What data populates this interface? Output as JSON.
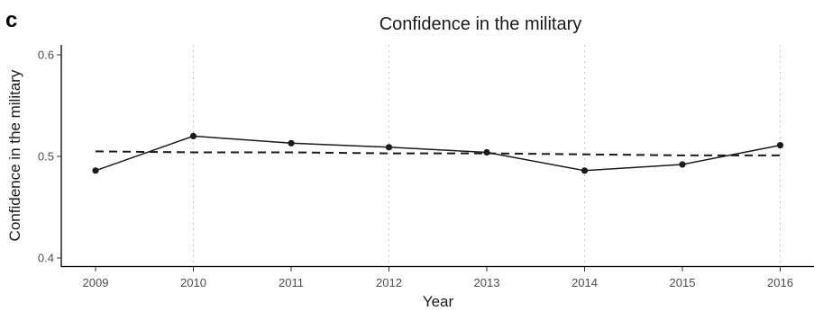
{
  "panel_label": "c",
  "chart_data": {
    "type": "line",
    "title": "Confidence in the military",
    "xlabel": "Year",
    "ylabel": "Confidence in the military",
    "categories": [
      "2009",
      "2010",
      "2011",
      "2012",
      "2013",
      "2014",
      "2015",
      "2016"
    ],
    "ylim": [
      0.395,
      0.61
    ],
    "yticks": [
      "0.4",
      "0.5",
      "0.6"
    ],
    "ytick_values": [
      0.4,
      0.5,
      0.6
    ],
    "grid": "vertical dotted at first and every other year",
    "series": [
      {
        "values": [
          0.486,
          0.52,
          0.513,
          0.509,
          0.504,
          0.486,
          0.492,
          0.511
        ],
        "style": "solid line with points"
      },
      {
        "values": [
          0.505,
          0.504,
          0.504,
          0.503,
          0.503,
          0.502,
          0.501,
          0.501
        ],
        "style": "dashed trend line"
      }
    ]
  }
}
